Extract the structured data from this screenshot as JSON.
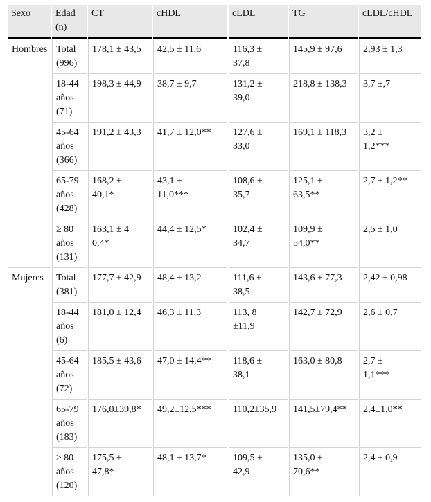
{
  "colors": {
    "header_background": "#e8e8e8",
    "cell_border": "#d3d3d3",
    "header_rule": "#000000",
    "text": "#111111"
  },
  "table": {
    "headers": [
      "Sexo",
      "Edad\n(n)",
      "CT",
      "cHDL",
      "cLDL",
      "TG",
      "cLDL/cHDL"
    ],
    "groups": [
      {
        "sexo": "Hombres",
        "rows": [
          {
            "edad": "Total\n(996)",
            "ct": "178,1 ± 43,5",
            "chdl": "42,5 ± 11,6",
            "cldl": "116,3 ±\n37,8",
            "tg": "145,9 ± 97,6",
            "ratio": "2,93 ± 1,3"
          },
          {
            "edad": "18-44\naños\n(71)",
            "ct": "198,3 ± 44,9",
            "chdl": "38,7 ± 9,7",
            "cldl": "131,2 ±\n39,0",
            "tg": "218,8 ± 138,3",
            "ratio": "3,7 ±,7"
          },
          {
            "edad": "45-64\naños\n(366)",
            "ct": "191,2 ± 43,3",
            "chdl": "41,7 ± 12,0**",
            "cldl": "127,6 ±\n33,0",
            "tg": "169,1 ± 118,3",
            "ratio": "3,2 ±\n1,2***"
          },
          {
            "edad": "65-79\naños\n(428)",
            "ct": "168,2 ±\n40,1*",
            "chdl": "43,1 ±\n11,0***",
            "cldl": "108,6 ±\n35,7",
            "tg": "125,1 ±\n63,5**",
            "ratio": "2,7 ± 1,2**"
          },
          {
            "edad": "≥ 80\naños\n(131)",
            "ct": "163,1 ± 4\n0,4*",
            "chdl": "44,4 ± 12,5*",
            "cldl": "102,4 ±\n34,7",
            "tg": "109,9 ±\n54,0**",
            "ratio": "2,5 ± 1,0"
          }
        ]
      },
      {
        "sexo": "Mujeres",
        "rows": [
          {
            "edad": "Total\n(381)",
            "ct": "177,7 ± 42,9",
            "chdl": "48,4 ± 13,2",
            "cldl": "111,6 ±\n38,5",
            "tg": "143,6 ± 77,3",
            "ratio": "2,42 ± 0,98"
          },
          {
            "edad": "18-44\naños\n(6)",
            "ct": "181,0 ± 12,4",
            "chdl": "46,3 ± 11,3",
            "cldl": "113, 8\n±11,9",
            "tg": "142,7 ± 72,9",
            "ratio": "2,6 ± 0,7"
          },
          {
            "edad": "45-64\naños\n(72)",
            "ct": "185,5 ± 43,6",
            "chdl": "47,0 ± 14,4**",
            "cldl": "118,6 ±\n38,1",
            "tg": "163,0 ± 80,8",
            "ratio": "2,7 ±\n1,1***"
          },
          {
            "edad": "65-79\naños\n(183)",
            "ct": "176,0±39,8*",
            "chdl": "49,2±12,5***",
            "cldl": "110,2±35,9",
            "tg": "141,5±79,4**",
            "ratio": "2,4±1,0**"
          },
          {
            "edad": "≥ 80\naños\n(120)",
            "ct": "175,5 ±\n47,8*",
            "chdl": "48,1 ± 13,7*",
            "cldl": "109,5 ±\n42,9",
            "tg": "135,0 ±\n70,6**",
            "ratio": "2,4 ± 0,9"
          }
        ]
      }
    ]
  }
}
